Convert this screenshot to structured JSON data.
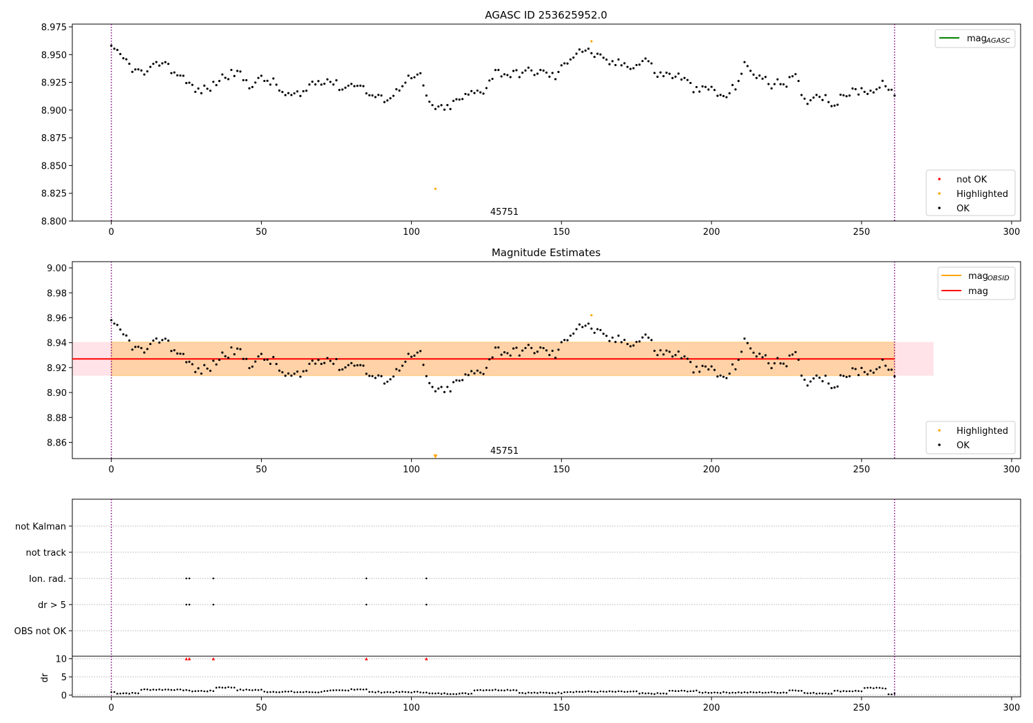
{
  "chart_data": [
    {
      "type": "scatter",
      "title": "AGASC ID 253625952.0",
      "xlabel": "",
      "ylabel": "",
      "xlim": [
        -13,
        303
      ],
      "ylim": [
        8.8,
        8.9775
      ],
      "xticks": [
        0,
        50,
        100,
        150,
        200,
        250,
        300
      ],
      "xtick_labels": [
        "0",
        "50",
        "100",
        "150",
        "200",
        "250",
        "300"
      ],
      "yticks": [
        8.8,
        8.825,
        8.85,
        8.875,
        8.9,
        8.925,
        8.95,
        8.975
      ],
      "ytick_labels": [
        "8.800",
        "8.825",
        "8.850",
        "8.875",
        "8.900",
        "8.925",
        "8.950",
        "8.975"
      ],
      "vlines": [
        0,
        261
      ],
      "vline_color": "#800080",
      "annotation": {
        "text": "45751",
        "x": 131,
        "y": 8.808
      },
      "legend_line": {
        "label_base": "mag",
        "label_sub": "AGASC",
        "color": "#008000",
        "placement": "upper right"
      },
      "legend_points": {
        "placement": "lower right",
        "entries": [
          {
            "label": "not OK",
            "color": "#ff0000"
          },
          {
            "label": "Highlighted",
            "color": "#ffa500"
          },
          {
            "label": "OK",
            "color": "#000000"
          }
        ]
      },
      "series": [
        {
          "name": "OK",
          "color": "#000000",
          "noise": 0.0018,
          "nodes": [
            [
              0,
              8.955
            ],
            [
              5,
              8.944
            ],
            [
              8,
              8.935
            ],
            [
              12,
              8.933
            ],
            [
              17,
              8.945
            ],
            [
              20,
              8.936
            ],
            [
              25,
              8.928
            ],
            [
              28,
              8.917
            ],
            [
              33,
              8.92
            ],
            [
              37,
              8.93
            ],
            [
              42,
              8.934
            ],
            [
              46,
              8.923
            ],
            [
              50,
              8.928
            ],
            [
              54,
              8.925
            ],
            [
              58,
              8.913
            ],
            [
              63,
              8.913
            ],
            [
              67,
              8.925
            ],
            [
              72,
              8.928
            ],
            [
              77,
              8.92
            ],
            [
              82,
              8.925
            ],
            [
              86,
              8.914
            ],
            [
              90,
              8.91
            ],
            [
              94,
              8.913
            ],
            [
              98,
              8.928
            ],
            [
              103,
              8.93
            ],
            [
              106,
              8.905
            ],
            [
              111,
              8.9
            ],
            [
              115,
              8.908
            ],
            [
              120,
              8.915
            ],
            [
              124,
              8.918
            ],
            [
              128,
              8.935
            ],
            [
              133,
              8.932
            ],
            [
              139,
              8.935
            ],
            [
              144,
              8.934
            ],
            [
              148,
              8.93
            ],
            [
              152,
              8.945
            ],
            [
              156,
              8.955
            ],
            [
              160,
              8.952
            ],
            [
              165,
              8.943
            ],
            [
              170,
              8.942
            ],
            [
              175,
              8.94
            ],
            [
              178,
              8.947
            ],
            [
              182,
              8.932
            ],
            [
              186,
              8.932
            ],
            [
              190,
              8.93
            ],
            [
              195,
              8.917
            ],
            [
              200,
              8.92
            ],
            [
              204,
              8.91
            ],
            [
              208,
              8.922
            ],
            [
              211,
              8.94
            ],
            [
              215,
              8.932
            ],
            [
              220,
              8.923
            ],
            [
              225,
              8.925
            ],
            [
              228,
              8.93
            ],
            [
              231,
              8.908
            ],
            [
              236,
              8.915
            ],
            [
              241,
              8.905
            ],
            [
              245,
              8.915
            ],
            [
              250,
              8.918
            ],
            [
              255,
              8.918
            ],
            [
              258,
              8.925
            ],
            [
              261,
              8.91
            ]
          ],
          "x_start": 0,
          "x_end": 261,
          "step": 1.0
        },
        {
          "name": "Highlighted",
          "color": "#ffa500",
          "points": [
            [
              108,
              8.829
            ],
            [
              160,
              8.962
            ]
          ]
        }
      ]
    },
    {
      "type": "scatter",
      "title": "Magnitude Estimates",
      "xlabel": "",
      "ylabel": "",
      "xlim": [
        -13,
        303
      ],
      "ylim": [
        8.847,
        9.005
      ],
      "xticks": [
        0,
        50,
        100,
        150,
        200,
        250,
        300
      ],
      "xtick_labels": [
        "0",
        "50",
        "100",
        "150",
        "200",
        "250",
        "300"
      ],
      "yticks": [
        8.86,
        8.88,
        8.9,
        8.92,
        8.94,
        8.96,
        8.98,
        9.0
      ],
      "ytick_labels": [
        "8.86",
        "8.88",
        "8.90",
        "8.92",
        "8.94",
        "8.96",
        "8.98",
        "9.00"
      ],
      "vlines": [
        0,
        261
      ],
      "vline_color": "#800080",
      "annotation": {
        "text": "45751",
        "x": 131,
        "y": 8.853
      },
      "mag_line": {
        "value": 8.927,
        "color": "#ff0000",
        "x_range": [
          -13,
          261
        ]
      },
      "band_mag": {
        "low": 8.9135,
        "high": 8.9405,
        "x_range": [
          -13,
          274
        ],
        "color": "#ffc0cb"
      },
      "band_obsid": {
        "low": 8.9135,
        "high": 8.9405,
        "x_range": [
          0,
          261
        ],
        "color": "#ffa500"
      },
      "legend_line": {
        "placement": "upper right",
        "entries": [
          {
            "label_base": "mag",
            "label_sub": "OBSID",
            "color": "#ffa500"
          },
          {
            "label_base": "mag",
            "label_sub": "",
            "color": "#ff0000"
          }
        ]
      },
      "legend_points": {
        "placement": "lower right",
        "entries": [
          {
            "label": "Highlighted",
            "color": "#ffa500"
          },
          {
            "label": "OK",
            "color": "#000000"
          }
        ]
      },
      "series": [
        {
          "name": "OK",
          "color": "#000000",
          "same_as_panel": 0
        },
        {
          "name": "Highlighted",
          "color": "#ffa500",
          "points": [
            [
              160,
              8.962
            ]
          ]
        },
        {
          "name": "Highlighted (below axis)",
          "color": "#ffa500",
          "marker": "triangle-down",
          "points": [
            [
              108,
              8.848
            ]
          ]
        }
      ]
    },
    {
      "type": "scatter",
      "title": "",
      "xlabel": "",
      "ylabel": "",
      "xlim": [
        -13,
        303
      ],
      "categories": [
        "OBS not OK",
        "dr > 5",
        "Ion. rad.",
        "not track",
        "not Kalman"
      ],
      "vlines": [
        0,
        261
      ],
      "vline_color": "#800080",
      "flag_points": [
        {
          "category": "Ion. rad.",
          "x": [
            25,
            26,
            34,
            85,
            105
          ]
        },
        {
          "category": "dr > 5",
          "x": [
            25,
            26,
            34,
            85,
            105
          ]
        }
      ]
    },
    {
      "type": "scatter",
      "title": "",
      "xlabel": "",
      "ylabel": "dr",
      "xlim": [
        -13,
        303
      ],
      "ylim": [
        -0.5,
        10.7
      ],
      "yticks": [
        0,
        5,
        10
      ],
      "ytick_labels": [
        "0",
        "5",
        "10"
      ],
      "vlines": [
        0,
        261
      ],
      "vline_color": "#800080",
      "series": [
        {
          "name": "dr",
          "color": "#000000",
          "segments": [
            [
              0,
              1,
              0.8
            ],
            [
              2,
              9,
              0.5
            ],
            [
              10,
              21,
              1.5
            ],
            [
              22,
              25,
              1.4
            ],
            [
              26,
              34,
              1.1
            ],
            [
              35,
              41,
              2.1
            ],
            [
              42,
              50,
              1.4
            ],
            [
              51,
              60,
              0.9
            ],
            [
              61,
              70,
              0.8
            ],
            [
              71,
              79,
              1.2
            ],
            [
              80,
              85,
              1.6
            ],
            [
              86,
              105,
              0.8
            ],
            [
              106,
              120,
              0.4
            ],
            [
              121,
              135,
              1.4
            ],
            [
              136,
              150,
              0.6
            ],
            [
              151,
              175,
              0.9
            ],
            [
              176,
              185,
              0.4
            ],
            [
              186,
              195,
              1.1
            ],
            [
              196,
              225,
              0.7
            ],
            [
              226,
              230,
              1.3
            ],
            [
              231,
              240,
              0.5
            ],
            [
              241,
              250,
              1.1
            ],
            [
              251,
              258,
              1.9
            ],
            [
              259,
              261,
              0.3
            ]
          ]
        },
        {
          "name": "dr > 5",
          "color": "#ff0000",
          "marker": "triangle-up",
          "points": [
            [
              25,
              10
            ],
            [
              26,
              10
            ],
            [
              34,
              10
            ],
            [
              85,
              10
            ],
            [
              105,
              10
            ]
          ]
        }
      ]
    }
  ]
}
